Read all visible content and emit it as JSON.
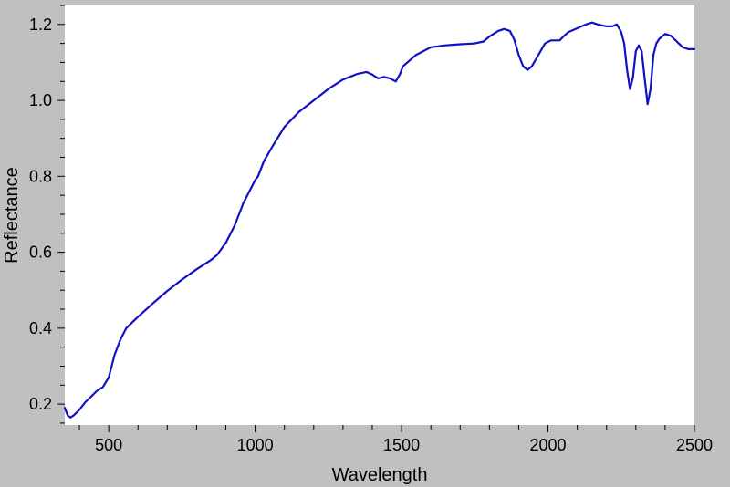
{
  "chart_data": {
    "type": "line",
    "xlabel": "Wavelength",
    "ylabel": "Reflectance",
    "xlim": [
      350,
      2500
    ],
    "ylim": [
      0.145,
      1.25
    ],
    "x_ticks": [
      500,
      1000,
      1500,
      2000,
      2500
    ],
    "y_ticks": [
      0.2,
      0.4,
      0.6,
      0.8,
      1.0,
      1.2
    ],
    "x_tick_labels": [
      "500",
      "1000",
      "1500",
      "2000",
      "2500"
    ],
    "y_tick_labels": [
      "0.2",
      "0.4",
      "0.6",
      "0.8",
      "1.0",
      "1.2"
    ],
    "grid": false,
    "colors": {
      "plot_bg": "#ffffff",
      "frame_bg": "#c0c0c0",
      "line": "#1010c8"
    },
    "series": [
      {
        "x": [
          350,
          360,
          370,
          380,
          400,
          420,
          440,
          460,
          480,
          500,
          520,
          540,
          560,
          580,
          600,
          650,
          700,
          750,
          800,
          850,
          870,
          900,
          930,
          960,
          990,
          1000,
          1010,
          1030,
          1060,
          1100,
          1150,
          1200,
          1250,
          1300,
          1350,
          1380,
          1400,
          1420,
          1440,
          1460,
          1480,
          1495,
          1505,
          1520,
          1550,
          1600,
          1650,
          1700,
          1750,
          1780,
          1800,
          1830,
          1850,
          1870,
          1885,
          1900,
          1915,
          1930,
          1945,
          1960,
          1990,
          2010,
          2040,
          2055,
          2070,
          2100,
          2130,
          2150,
          2170,
          2200,
          2220,
          2235,
          2250,
          2260,
          2270,
          2280,
          2290,
          2300,
          2310,
          2320,
          2330,
          2340,
          2350,
          2360,
          2370,
          2380,
          2400,
          2420,
          2440,
          2460,
          2480,
          2500
        ],
        "y": [
          0.19,
          0.17,
          0.165,
          0.17,
          0.185,
          0.205,
          0.22,
          0.235,
          0.245,
          0.27,
          0.33,
          0.37,
          0.4,
          0.415,
          0.43,
          0.465,
          0.498,
          0.528,
          0.555,
          0.58,
          0.593,
          0.625,
          0.67,
          0.73,
          0.775,
          0.79,
          0.8,
          0.84,
          0.88,
          0.93,
          0.97,
          1.0,
          1.03,
          1.055,
          1.07,
          1.075,
          1.068,
          1.058,
          1.062,
          1.058,
          1.05,
          1.07,
          1.09,
          1.1,
          1.12,
          1.14,
          1.145,
          1.148,
          1.15,
          1.155,
          1.168,
          1.183,
          1.188,
          1.183,
          1.16,
          1.12,
          1.09,
          1.08,
          1.09,
          1.11,
          1.15,
          1.158,
          1.158,
          1.17,
          1.18,
          1.19,
          1.2,
          1.205,
          1.2,
          1.195,
          1.195,
          1.2,
          1.18,
          1.15,
          1.08,
          1.03,
          1.06,
          1.13,
          1.145,
          1.13,
          1.06,
          0.99,
          1.03,
          1.12,
          1.15,
          1.162,
          1.175,
          1.17,
          1.155,
          1.14,
          1.135,
          1.135
        ]
      }
    ]
  }
}
